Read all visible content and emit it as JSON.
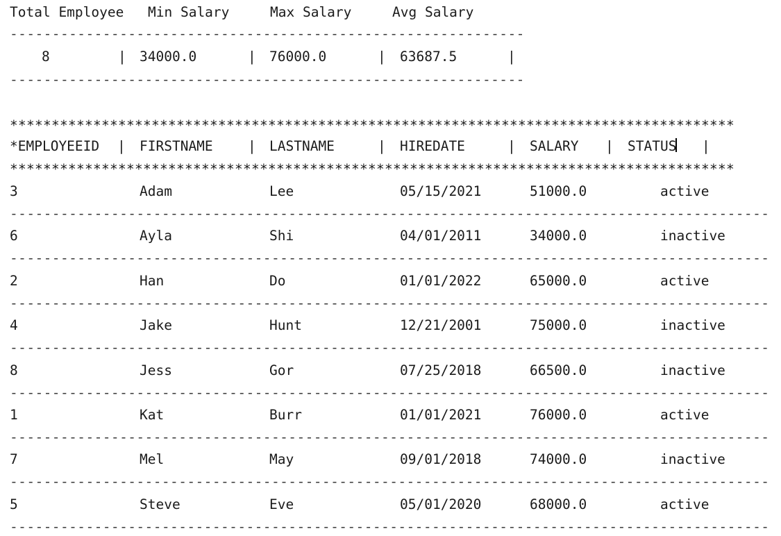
{
  "summary": {
    "headers": [
      "Total Employee",
      "Min Salary",
      "Max Salary",
      "Avg Salary"
    ],
    "values": [
      "8",
      "34000.0",
      "76000.0",
      "63687.5"
    ],
    "separator": "|",
    "rule": "-------------------------------------------------------------"
  },
  "table": {
    "star_rule": "***************************************************************************************",
    "headers": [
      "*EMPLOYEEID",
      "FIRSTNAME",
      "LASTNAME",
      "HIREDATE",
      "SALARY",
      "STATUS"
    ],
    "separator": "|",
    "row_rule": "------------------------------------------------------------------------------------------",
    "rows": [
      {
        "id": "3",
        "first": "Adam",
        "last": "Lee",
        "hire": "05/15/2021",
        "salary": "51000.0",
        "status": "active"
      },
      {
        "id": "6",
        "first": "Ayla",
        "last": "Shi",
        "hire": "04/01/2011",
        "salary": "34000.0",
        "status": "inactive"
      },
      {
        "id": "2",
        "first": "Han",
        "last": "Do",
        "hire": "01/01/2022",
        "salary": "65000.0",
        "status": "active"
      },
      {
        "id": "4",
        "first": "Jake",
        "last": "Hunt",
        "hire": "12/21/2001",
        "salary": "75000.0",
        "status": "inactive"
      },
      {
        "id": "8",
        "first": "Jess",
        "last": "Gor",
        "hire": "07/25/2018",
        "salary": "66500.0",
        "status": "inactive"
      },
      {
        "id": "1",
        "first": "Kat",
        "last": "Burr",
        "hire": "01/01/2021",
        "salary": "76000.0",
        "status": "active"
      },
      {
        "id": "7",
        "first": "Mel",
        "last": "May",
        "hire": "09/01/2018",
        "salary": "74000.0",
        "status": "inactive"
      },
      {
        "id": "5",
        "first": "Steve",
        "last": "Eve",
        "hire": "05/01/2020",
        "salary": "68000.0",
        "status": "active"
      }
    ]
  }
}
